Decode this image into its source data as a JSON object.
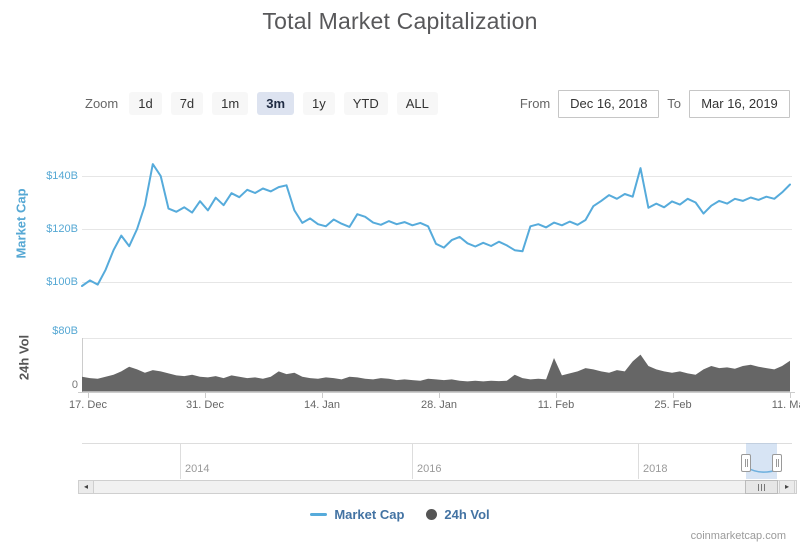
{
  "header": {
    "title": "Total Market Capitalization"
  },
  "controls": {
    "zoom_label": "Zoom",
    "zoom_buttons": [
      "1d",
      "7d",
      "1m",
      "3m",
      "1y",
      "YTD",
      "ALL"
    ],
    "zoom_selected": "3m",
    "from_label": "From",
    "from_value": "Dec 16, 2018",
    "to_label": "To",
    "to_value": "Mar 16, 2019"
  },
  "chart_data": {
    "type": "line",
    "title": "Total Market Capitalization",
    "x_start": "2018-12-16",
    "x_end": "2019-03-16",
    "x_interval": "daily",
    "xaxis": {
      "labels": [
        "17. Dec",
        "31. Dec",
        "14. Jan",
        "28. Jan",
        "11. Feb",
        "25. Feb",
        "11. Mar"
      ]
    },
    "panes": [
      {
        "name": "market_cap",
        "ylabel": "Market Cap",
        "tick_labels": [
          "$140B",
          "$120B",
          "$100B"
        ],
        "ylim": [
          95,
          150
        ],
        "unit": "USD billions",
        "color": "#56abdb",
        "grid": true
      },
      {
        "name": "volume_24h",
        "ylabel": "24h Vol",
        "tick_labels": [
          "$80B",
          "0"
        ],
        "ylim": [
          0,
          80
        ],
        "unit": "USD billions",
        "color": "#666666",
        "grid": true
      }
    ],
    "series": [
      {
        "name": "Market Cap",
        "type": "line",
        "color": "#56abdb",
        "values": [
          98.5,
          100.6,
          99.0,
          104.6,
          112.0,
          117.5,
          113.5,
          120.0,
          129.0,
          144.5,
          140.0,
          127.7,
          126.5,
          128.2,
          126.2,
          130.5,
          127.0,
          131.8,
          129.0,
          133.5,
          132.0,
          134.8,
          133.6,
          135.3,
          134.2,
          135.8,
          136.5,
          127.0,
          122.3,
          124.0,
          121.8,
          121.0,
          123.6,
          122.0,
          120.8,
          125.6,
          124.6,
          122.4,
          121.6,
          123.0,
          121.8,
          122.6,
          121.4,
          122.3,
          121.0,
          114.4,
          113.0,
          115.8,
          117.0,
          114.6,
          113.4,
          114.8,
          113.6,
          115.2,
          113.8,
          112.0,
          111.6,
          121.0,
          121.8,
          120.6,
          122.4,
          121.4,
          122.8,
          121.6,
          123.4,
          128.6,
          130.6,
          132.8,
          131.4,
          133.2,
          132.2,
          143.0,
          128.0,
          129.6,
          128.2,
          130.4,
          129.2,
          131.4,
          130.0,
          125.8,
          128.8,
          130.6,
          129.6,
          131.4,
          130.6,
          131.9,
          131.0,
          132.2,
          131.4,
          133.8,
          136.8
        ]
      },
      {
        "name": "24h Vol",
        "type": "area",
        "color": "#666666",
        "values": [
          22,
          20,
          19,
          22,
          25,
          30,
          37,
          33,
          28,
          32,
          30,
          27,
          24,
          23,
          25,
          22,
          21,
          23,
          20,
          24,
          22,
          20,
          21,
          19,
          22,
          30,
          26,
          28,
          22,
          20,
          19,
          21,
          20,
          18,
          22,
          21,
          19,
          18,
          20,
          19,
          17,
          18,
          17,
          16,
          19,
          18,
          17,
          18,
          16,
          15,
          16,
          15,
          16,
          15.5,
          16,
          25,
          20,
          18,
          19,
          18,
          50,
          24,
          27,
          30,
          35,
          33,
          30,
          28,
          32,
          30,
          45,
          55,
          38,
          33,
          30,
          28,
          30,
          27,
          25,
          33,
          38,
          35,
          36,
          34,
          38,
          40,
          37,
          35,
          33,
          38,
          46
        ]
      }
    ],
    "navigator": {
      "year_labels": [
        "2014",
        "2016",
        "2018"
      ],
      "selected_range": "Dec 16, 2018 – Mar 16, 2019"
    },
    "legend_position": "bottom"
  },
  "legend": {
    "items": [
      {
        "label": "Market Cap",
        "marker": "line",
        "color": "#56abdb"
      },
      {
        "label": "24h Vol",
        "marker": "circle",
        "color": "#555555"
      }
    ]
  },
  "footer": {
    "watermark": "coinmarketcap.com"
  }
}
